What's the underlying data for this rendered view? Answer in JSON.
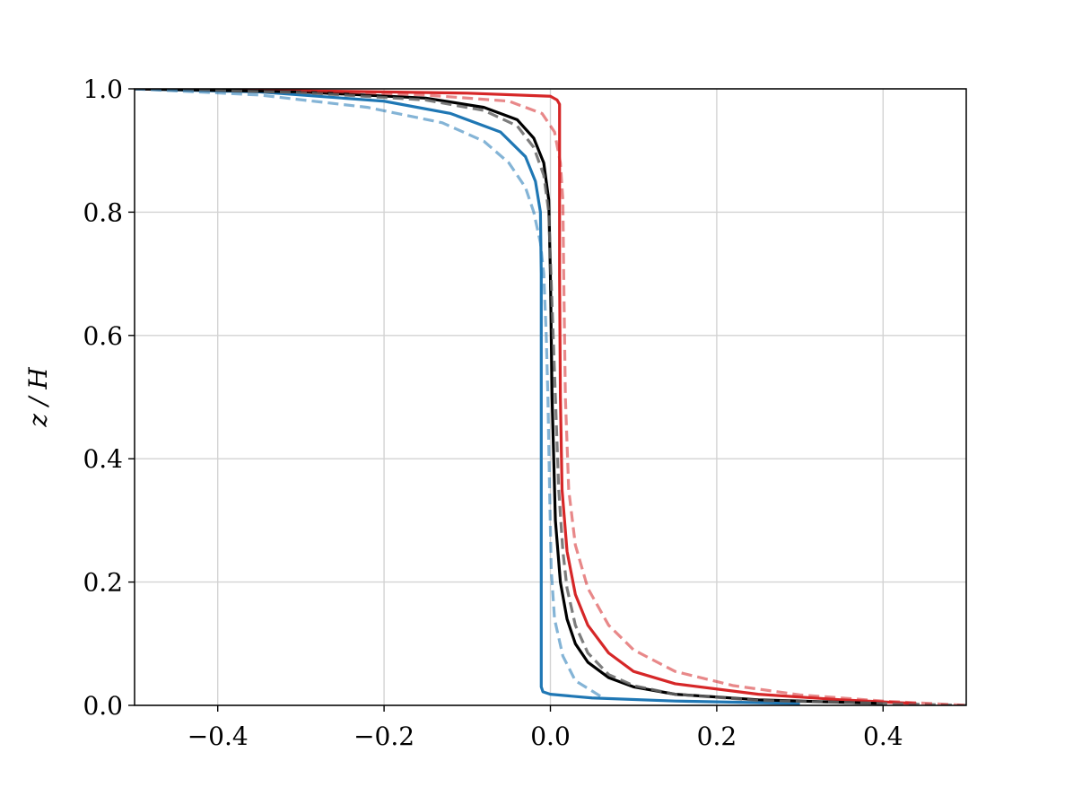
{
  "chart_data": {
    "type": "line",
    "title": "",
    "xlabel": "",
    "ylabel": "z / H",
    "xlim": [
      -0.5,
      0.5
    ],
    "ylim": [
      0.0,
      1.0
    ],
    "grid": true,
    "x_ticks": [
      "−0.4",
      "−0.2",
      "0.0",
      "0.2",
      "0.4"
    ],
    "x_tick_values": [
      -0.4,
      -0.2,
      0.0,
      0.2,
      0.4
    ],
    "y_ticks": [
      "0.0",
      "0.2",
      "0.4",
      "0.6",
      "0.8",
      "1.0"
    ],
    "y_tick_values": [
      0.0,
      0.2,
      0.4,
      0.6,
      0.8,
      1.0
    ],
    "series": [
      {
        "color": "#1f77b4",
        "style": "solid",
        "opacity": 1.0,
        "x": [
          -0.5,
          -0.35,
          -0.2,
          -0.12,
          -0.06,
          -0.03,
          -0.018,
          -0.012,
          -0.011,
          -0.011,
          -0.011,
          -0.011,
          -0.011,
          -0.011,
          -0.011,
          -0.009,
          0.0,
          0.05,
          0.15,
          0.3
        ],
        "y": [
          1.0,
          0.995,
          0.98,
          0.96,
          0.93,
          0.89,
          0.85,
          0.8,
          0.7,
          0.6,
          0.4,
          0.2,
          0.1,
          0.05,
          0.03,
          0.022,
          0.018,
          0.012,
          0.007,
          0.003
        ]
      },
      {
        "color": "#d62728",
        "style": "solid",
        "opacity": 1.0,
        "x": [
          -0.5,
          -0.3,
          -0.1,
          0.0,
          0.008,
          0.011,
          0.011,
          0.011,
          0.012,
          0.014,
          0.02,
          0.03,
          0.045,
          0.07,
          0.1,
          0.15,
          0.25,
          0.35,
          0.44
        ],
        "y": [
          1.0,
          0.997,
          0.993,
          0.988,
          0.982,
          0.975,
          0.9,
          0.7,
          0.5,
          0.35,
          0.25,
          0.18,
          0.13,
          0.085,
          0.055,
          0.035,
          0.018,
          0.009,
          0.003
        ]
      },
      {
        "color": "#000000",
        "style": "solid",
        "opacity": 1.0,
        "x": [
          -0.5,
          -0.3,
          -0.15,
          -0.08,
          -0.04,
          -0.02,
          -0.008,
          -0.002,
          0.0,
          0.002,
          0.006,
          0.012,
          0.02,
          0.03,
          0.045,
          0.07,
          0.1,
          0.15,
          0.25,
          0.4
        ],
        "y": [
          1.0,
          0.995,
          0.985,
          0.97,
          0.95,
          0.92,
          0.88,
          0.82,
          0.7,
          0.5,
          0.3,
          0.2,
          0.14,
          0.1,
          0.07,
          0.045,
          0.03,
          0.018,
          0.009,
          0.003
        ]
      },
      {
        "color": "#666666",
        "style": "dashed",
        "opacity": 0.85,
        "x": [
          -0.5,
          -0.3,
          -0.15,
          -0.08,
          -0.04,
          -0.02,
          -0.008,
          -0.002,
          0.002,
          0.006,
          0.01,
          0.015,
          0.02,
          0.03,
          0.045,
          0.07,
          0.1,
          0.15,
          0.25,
          0.5
        ],
        "y": [
          1.0,
          0.994,
          0.982,
          0.965,
          0.94,
          0.905,
          0.86,
          0.8,
          0.65,
          0.5,
          0.35,
          0.25,
          0.19,
          0.13,
          0.085,
          0.05,
          0.032,
          0.018,
          0.008,
          0.0
        ]
      },
      {
        "color": "#1f77b4",
        "style": "dashed",
        "opacity": 0.55,
        "x": [
          -0.5,
          -0.35,
          -0.22,
          -0.13,
          -0.08,
          -0.05,
          -0.03,
          -0.02,
          -0.012,
          -0.008,
          -0.005,
          -0.003,
          -0.001,
          0.001,
          0.005,
          0.015,
          0.03,
          0.06
        ],
        "y": [
          1.0,
          0.99,
          0.97,
          0.945,
          0.915,
          0.88,
          0.84,
          0.8,
          0.75,
          0.7,
          0.6,
          0.5,
          0.35,
          0.22,
          0.14,
          0.08,
          0.04,
          0.015
        ]
      },
      {
        "color": "#d62728",
        "style": "dashed",
        "opacity": 0.55,
        "x": [
          -0.3,
          -0.15,
          -0.05,
          -0.01,
          0.005,
          0.012,
          0.015,
          0.016,
          0.018,
          0.022,
          0.03,
          0.045,
          0.07,
          0.1,
          0.15,
          0.22,
          0.3,
          0.4,
          0.5
        ],
        "y": [
          0.997,
          0.99,
          0.98,
          0.96,
          0.93,
          0.88,
          0.82,
          0.7,
          0.5,
          0.35,
          0.26,
          0.19,
          0.13,
          0.09,
          0.055,
          0.032,
          0.017,
          0.007,
          0.0
        ]
      }
    ]
  }
}
